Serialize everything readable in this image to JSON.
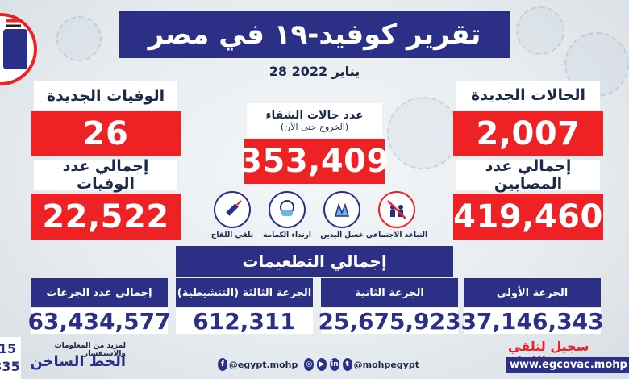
{
  "title": "تقرير كوفيد-١٩ في مصر",
  "date": "28 يناير 2022",
  "new_cases": {
    "label": "الحالات الجديدة",
    "value": "2,007"
  },
  "total_cases": {
    "label": "إجمالي عدد المصابين",
    "value": "419,460"
  },
  "new_deaths": {
    "label": "الوفيات الجديدة",
    "value": "26"
  },
  "total_deaths": {
    "label": "إجمالي عدد الوفيات",
    "value": "22,522"
  },
  "recovered": {
    "label": "عدد حالات الشفاء",
    "sublabel": "(الخروج حتى الآن)",
    "value": "353,409"
  },
  "precautions": [
    {
      "label": "التباعد الاجتماعي",
      "icon": "social-distancing-icon"
    },
    {
      "label": "غسل اليدين",
      "icon": "hand-washing-icon"
    },
    {
      "label": "ارتداء الكمامة",
      "icon": "mask-icon"
    },
    {
      "label": "تلقي اللقاح",
      "icon": "vaccine-icon"
    }
  ],
  "vaccinations": {
    "header": "إجمالي التطعيمات",
    "doses": [
      {
        "label": "الجرعة الأولى",
        "value": "37,146,343"
      },
      {
        "label": "الجرعة الثانية",
        "value": "25,675,923"
      },
      {
        "label": "الجرعة الثالثة (التنشيطية)",
        "value": "612,311"
      },
      {
        "label": "إجمالي عدد الجرعات",
        "value": "63,434,577"
      }
    ]
  },
  "footer": {
    "register_label": "سجيل لتلقي اللقاح",
    "website": "www.egcovac.mohp",
    "info_label": "لمزيد من المعلومات والاستفسار",
    "hotline_label": "الخط الساخن",
    "hotline_digits_top": "15",
    "hotline_digits_bottom": "335",
    "facebook_handle": "@egypt.mohp",
    "twitter_handle": "@mohpegypt"
  },
  "colors": {
    "navy": "#2b2f86",
    "red": "#ee2124"
  }
}
